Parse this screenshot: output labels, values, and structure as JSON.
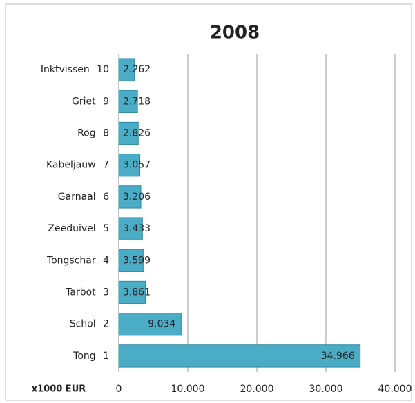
{
  "chart_data": {
    "type": "barh",
    "title": "2008",
    "categories": [
      "Inktvissen 10",
      "Griet 9",
      "Rog 8",
      "Kabeljauw 7",
      "Garnaal 6",
      "Zeeduivel 5",
      "Tongschar 4",
      "Tarbot 3",
      "Schol 2",
      "Tong 1"
    ],
    "values": [
      2262,
      2718,
      2826,
      3057,
      3206,
      3433,
      3599,
      3861,
      9034,
      34966
    ],
    "value_labels": [
      "2.262",
      "2.718",
      "2.826",
      "3.057",
      "3.206",
      "3.433",
      "3.599",
      "3.861",
      "9.034",
      "34.966"
    ],
    "color": "#4bacc6",
    "x_label": "x1000 EUR",
    "xlim": [
      0,
      40000
    ],
    "xticks": [
      0,
      {
        "value": 10000,
        "label": "10.000"
      },
      {
        "value": 20000,
        "label": "20.000"
      },
      {
        "value": 30000,
        "label": "30.000"
      },
      {
        "value": 40000,
        "label": "40.000"
      }
    ],
    "grid": true
  }
}
